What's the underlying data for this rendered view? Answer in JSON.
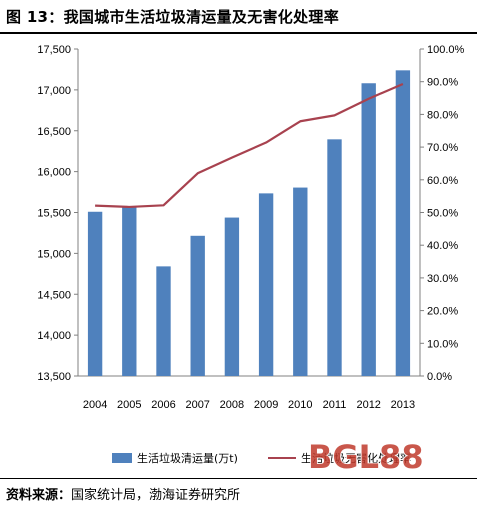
{
  "header": {
    "title": "图 13：我国城市生活垃圾清运量及无害化处理率"
  },
  "chart_data": {
    "type": "bar",
    "categories": [
      "2004",
      "2005",
      "2006",
      "2007",
      "2008",
      "2009",
      "2010",
      "2011",
      "2012",
      "2013"
    ],
    "series": [
      {
        "name": "生活垃圾清运量(万t)",
        "type": "bar",
        "axis": "left",
        "color": "#4F81BD",
        "values": [
          15509,
          15577,
          14841,
          15215,
          15438,
          15734,
          15805,
          16395,
          17081,
          17239
        ]
      },
      {
        "name": "生活垃圾无害化处理率",
        "type": "line",
        "axis": "right",
        "color": "#A8424F",
        "values": [
          52.1,
          51.7,
          52.2,
          62.0,
          66.8,
          71.4,
          77.9,
          79.7,
          84.8,
          89.3
        ]
      }
    ],
    "y_left": {
      "ylim": [
        13500,
        17500
      ],
      "ticks": [
        13500,
        14000,
        14500,
        15000,
        15500,
        16000,
        16500,
        17000,
        17500
      ],
      "tick_labels": [
        "13,500",
        "14,000",
        "14,500",
        "15,000",
        "15,500",
        "16,000",
        "16,500",
        "17,000",
        "17,500"
      ]
    },
    "y_right": {
      "ylim": [
        0,
        100
      ],
      "ticks": [
        0,
        10,
        20,
        30,
        40,
        50,
        60,
        70,
        80,
        90,
        100
      ],
      "tick_labels": [
        "0.0%",
        "10.0%",
        "20.0%",
        "30.0%",
        "40.0%",
        "50.0%",
        "60.0%",
        "70.0%",
        "80.0%",
        "90.0%",
        "100.0%"
      ]
    },
    "grid": false,
    "legend_position": "bottom"
  },
  "legend": {
    "bar_label": "生活垃圾清运量(万t)",
    "line_label": "生活垃圾无害化处理率"
  },
  "source": {
    "label": "资料来源：",
    "text": "国家统计局，渤海证券研究所"
  },
  "watermark": {
    "text": "BGL88"
  }
}
